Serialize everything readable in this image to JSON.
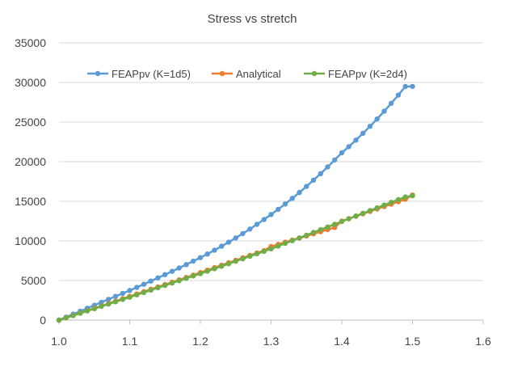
{
  "chart_data": {
    "type": "line",
    "title": "Stress vs stretch",
    "xlabel": "",
    "ylabel": "",
    "xlim": [
      1.0,
      1.6
    ],
    "ylim": [
      0,
      35000
    ],
    "x_ticks": [
      "1.0",
      "1.1",
      "1.2",
      "1.3",
      "1.4",
      "1.5",
      "1.6"
    ],
    "y_ticks": [
      "0",
      "5000",
      "10000",
      "15000",
      "20000",
      "25000",
      "30000",
      "35000"
    ],
    "grid": "horizontal",
    "legend": "top-inside",
    "x": [
      1.0,
      1.01,
      1.02,
      1.03,
      1.04,
      1.05,
      1.06,
      1.07,
      1.08,
      1.09,
      1.1,
      1.11,
      1.12,
      1.13,
      1.14,
      1.15,
      1.16,
      1.17,
      1.18,
      1.19,
      1.2,
      1.21,
      1.22,
      1.23,
      1.24,
      1.25,
      1.26,
      1.27,
      1.28,
      1.29,
      1.3,
      1.31,
      1.32,
      1.33,
      1.34,
      1.35,
      1.36,
      1.37,
      1.38,
      1.39,
      1.4,
      1.41,
      1.42,
      1.43,
      1.44,
      1.45,
      1.46,
      1.47,
      1.48,
      1.49,
      1.5
    ],
    "series": [
      {
        "name": "FEAPpv (K=1d5)",
        "color": "#5B9BD5",
        "values": [
          0,
          375,
          750,
          1125,
          1500,
          1875,
          2250,
          2625,
          3000,
          3375,
          3750,
          4137,
          4530,
          4929,
          5334,
          5745,
          6162,
          6585,
          7014,
          7449,
          7890,
          8349,
          8827,
          9324,
          9840,
          10375,
          10929,
          11501,
          12093,
          12704,
          13333,
          13986,
          14667,
          15376,
          16112,
          16877,
          17669,
          18490,
          19338,
          20215,
          21120,
          21901,
          22720,
          23577,
          24470,
          25400,
          26366,
          27369,
          28409,
          29486,
          29500
        ]
      },
      {
        "name": "Analytical",
        "color": "#ED7D31",
        "values": [
          0,
          300,
          600,
          900,
          1200,
          1500,
          1800,
          2100,
          2400,
          2700,
          3000,
          3298,
          3596,
          3894,
          4192,
          4490,
          4788,
          5086,
          5384,
          5682,
          6000,
          6310,
          6620,
          6930,
          7240,
          7550,
          7860,
          8170,
          8480,
          8790,
          9300,
          9566,
          9832,
          10098,
          10364,
          10630,
          10896,
          11162,
          11428,
          11694,
          12500,
          12806,
          13112,
          13418,
          13724,
          14030,
          14336,
          14642,
          14948,
          15254,
          15800
        ]
      },
      {
        "name": "FEAPpv (K=2d4)",
        "color": "#70AD47",
        "values": [
          0,
          290,
          580,
          870,
          1160,
          1450,
          1740,
          2030,
          2320,
          2610,
          2900,
          3197,
          3494,
          3791,
          4088,
          4385,
          4682,
          4979,
          5276,
          5573,
          5870,
          6183,
          6496,
          6809,
          7122,
          7435,
          7748,
          8061,
          8374,
          8687,
          9000,
          9345,
          9690,
          10035,
          10380,
          10725,
          11070,
          11415,
          11760,
          12105,
          12450,
          12795,
          13140,
          13485,
          13830,
          14175,
          14520,
          14865,
          15210,
          15555,
          15700
        ]
      }
    ]
  }
}
